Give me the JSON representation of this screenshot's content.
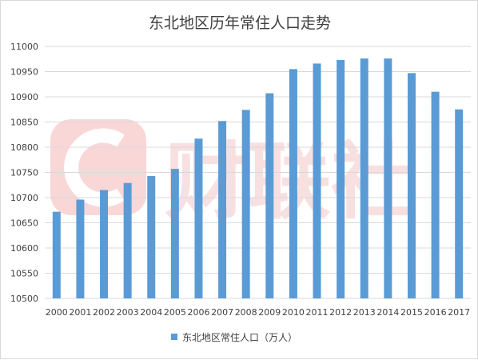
{
  "chart_data": {
    "type": "bar",
    "title": "东北地区历年常住人口走势",
    "xlabel": "",
    "ylabel": "",
    "categories": [
      "2000",
      "2001",
      "2002",
      "2003",
      "2004",
      "2005",
      "2006",
      "2007",
      "2008",
      "2009",
      "2010",
      "2011",
      "2012",
      "2013",
      "2014",
      "2015",
      "2016",
      "2017"
    ],
    "series": [
      {
        "name": "东北地区常住人口（万人）",
        "color": "#5b9bd5",
        "values": [
          10672,
          10696,
          10715,
          10729,
          10743,
          10757,
          10817,
          10852,
          10874,
          10907,
          10955,
          10966,
          10973,
          10976,
          10976,
          10947,
          10910,
          10875
        ]
      }
    ],
    "ylim": [
      10500,
      11000
    ],
    "yticks": [
      "10500",
      "10550",
      "10600",
      "10650",
      "10700",
      "10750",
      "10800",
      "10850",
      "10900",
      "10950",
      "11000"
    ],
    "grid": true,
    "legend_position": "bottom"
  },
  "watermark": {
    "text": "财联社",
    "color": "#f4c7c7"
  }
}
